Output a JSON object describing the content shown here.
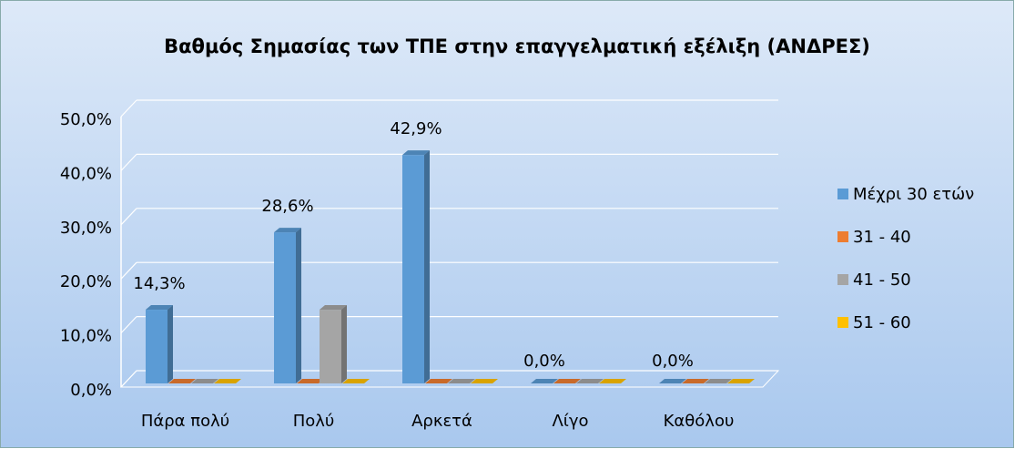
{
  "chart_data": {
    "type": "bar3d",
    "title": "Βαθμός Σημασίας των ΤΠΕ στην επαγγελματική εξέλιξη  (ΑΝΔΡΕΣ)",
    "categories": [
      "Πάρα πολύ",
      "Πολύ",
      "Αρκετά",
      "Λίγο",
      "Καθόλου"
    ],
    "series": [
      {
        "name": "Μέχρι 30 ετών",
        "color": "#5b9bd5",
        "values": [
          14.3,
          28.6,
          42.9,
          0,
          0
        ],
        "value_labels": [
          "14,3%",
          "28,6%",
          "42,9%",
          "0,0%",
          "0,0%"
        ]
      },
      {
        "name": "31 - 40",
        "color": "#ed7d31",
        "values": [
          0,
          0,
          0,
          0,
          0
        ]
      },
      {
        "name": "41 - 50",
        "color": "#a5a5a5",
        "values": [
          0,
          14.3,
          0,
          0,
          0
        ]
      },
      {
        "name": "51 - 60",
        "color": "#ffc000",
        "values": [
          0,
          0,
          0,
          0,
          0
        ]
      }
    ],
    "ylim": [
      0,
      50
    ],
    "yticks": [
      {
        "value": 0,
        "label": "0,0%"
      },
      {
        "value": 10,
        "label": "10,0%"
      },
      {
        "value": 20,
        "label": "20,0%"
      },
      {
        "value": 30,
        "label": "30,0%"
      },
      {
        "value": 40,
        "label": "40,0%"
      },
      {
        "value": 50,
        "label": "50,0%"
      }
    ],
    "grid": true,
    "legend": "right"
  }
}
